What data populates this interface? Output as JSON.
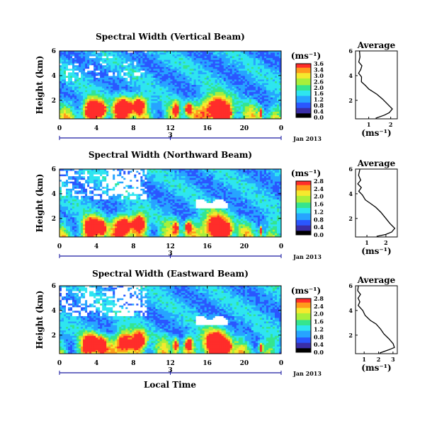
{
  "chart_data": [
    {
      "type": "heatmap",
      "title": "Spectral Width (Vertical Beam)",
      "ylabel": "Height (km)",
      "xticks": [
        "0",
        "4",
        "8",
        "12",
        "16",
        "20",
        "0"
      ],
      "yticks": [
        "2",
        "4",
        "6"
      ],
      "date_tick": "3",
      "date_label": "Jan 2013",
      "xlim": [
        0,
        24
      ],
      "ylim": [
        0.5,
        6.0
      ],
      "colorbar": {
        "unit": "(ms⁻¹)",
        "ticks": [
          "3.6",
          "3.4",
          "3.0",
          "2.6",
          "2.0",
          "1.6",
          "1.2",
          "0.8",
          "0.4",
          "0.0"
        ]
      },
      "average": {
        "title": "Average",
        "xlabel": "(ms⁻¹)",
        "xticks": [
          "1",
          "2"
        ],
        "yticks": [
          "2",
          "4",
          "6"
        ]
      }
    },
    {
      "type": "heatmap",
      "title": "Spectral Width (Northward Beam)",
      "ylabel": "Height (km)",
      "xticks": [
        "0",
        "4",
        "8",
        "12",
        "16",
        "20",
        "0"
      ],
      "yticks": [
        "2",
        "4",
        "6"
      ],
      "date_tick": "3",
      "date_label": "Jan 2013",
      "xlim": [
        0,
        24
      ],
      "ylim": [
        0.5,
        6.0
      ],
      "colorbar": {
        "unit": "(ms⁻¹)",
        "ticks": [
          "2.8",
          "2.4",
          "2.0",
          "1.6",
          "1.2",
          "0.8",
          "0.4",
          "0.0"
        ]
      },
      "average": {
        "title": "Average",
        "xlabel": "(ms⁻¹)",
        "xticks": [
          "1",
          "2"
        ],
        "yticks": [
          "2",
          "4",
          "6"
        ]
      }
    },
    {
      "type": "heatmap",
      "title": "Spectral Width (Eastward Beam)",
      "ylabel": "Height (km)",
      "xticks": [
        "0",
        "4",
        "8",
        "12",
        "16",
        "20",
        "0"
      ],
      "yticks": [
        "2",
        "4",
        "6"
      ],
      "date_tick": "3",
      "date_label": "Jan 2013",
      "xlim": [
        0,
        24
      ],
      "ylim": [
        0.5,
        6.0
      ],
      "colorbar": {
        "unit": "(ms⁻¹)",
        "ticks": [
          "2.8",
          "2.4",
          "2.0",
          "1.6",
          "1.2",
          "0.8",
          "0.4",
          "0.0"
        ]
      },
      "average": {
        "title": "Average",
        "xlabel": "(ms⁻¹)",
        "xticks": [
          "1",
          "2",
          "3"
        ],
        "yticks": [
          "2",
          "4",
          "6"
        ]
      }
    }
  ],
  "xlabel": "Local Time",
  "colormap": [
    "#000000",
    "#3a2ea8",
    "#2a57ff",
    "#27a4ff",
    "#2ee5f0",
    "#35e58e",
    "#a8ef3a",
    "#f5e92e",
    "#ff9a1c",
    "#ff2d2a"
  ]
}
